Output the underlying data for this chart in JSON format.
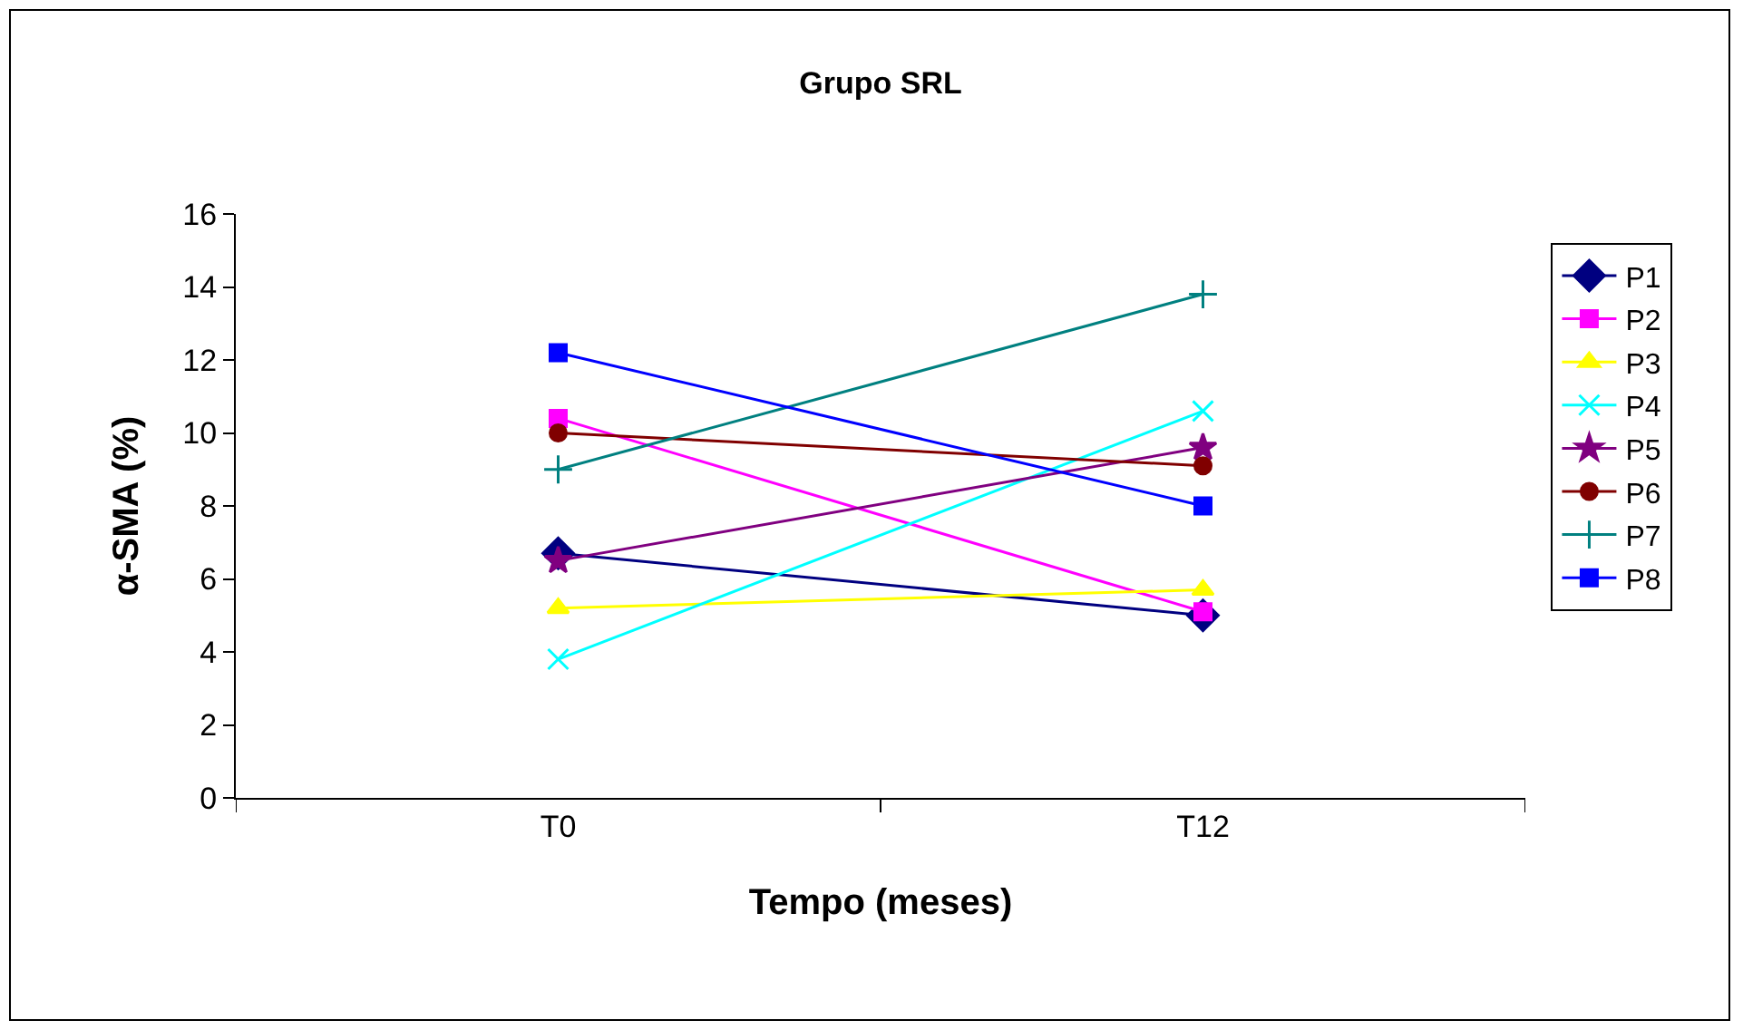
{
  "chart_data": {
    "type": "line",
    "title": "Grupo SRL",
    "xlabel": "Tempo (meses)",
    "ylabel": "α-SMA (%)",
    "categories": [
      "T0",
      "T12"
    ],
    "series": [
      {
        "name": "P1",
        "color": "#000080",
        "marker": "diamond",
        "values": [
          6.7,
          5.0
        ]
      },
      {
        "name": "P2",
        "color": "#ff00ff",
        "marker": "square",
        "values": [
          10.4,
          5.1
        ]
      },
      {
        "name": "P3",
        "color": "#ffff00",
        "marker": "triangle",
        "values": [
          5.2,
          5.7
        ]
      },
      {
        "name": "P4",
        "color": "#00ffff",
        "marker": "x",
        "values": [
          3.8,
          10.6
        ]
      },
      {
        "name": "P5",
        "color": "#800080",
        "marker": "star",
        "values": [
          6.5,
          9.6
        ]
      },
      {
        "name": "P6",
        "color": "#800000",
        "marker": "circle",
        "values": [
          10.0,
          9.1
        ]
      },
      {
        "name": "P7",
        "color": "#008080",
        "marker": "cross",
        "values": [
          9.0,
          13.8
        ]
      },
      {
        "name": "P8",
        "color": "#0000ff",
        "marker": "square",
        "values": [
          12.2,
          8.0
        ]
      }
    ],
    "ylim": [
      0,
      16
    ],
    "yticks": [
      0,
      2,
      4,
      6,
      8,
      10,
      12,
      14,
      16
    ],
    "grid": false,
    "legend": "right"
  }
}
